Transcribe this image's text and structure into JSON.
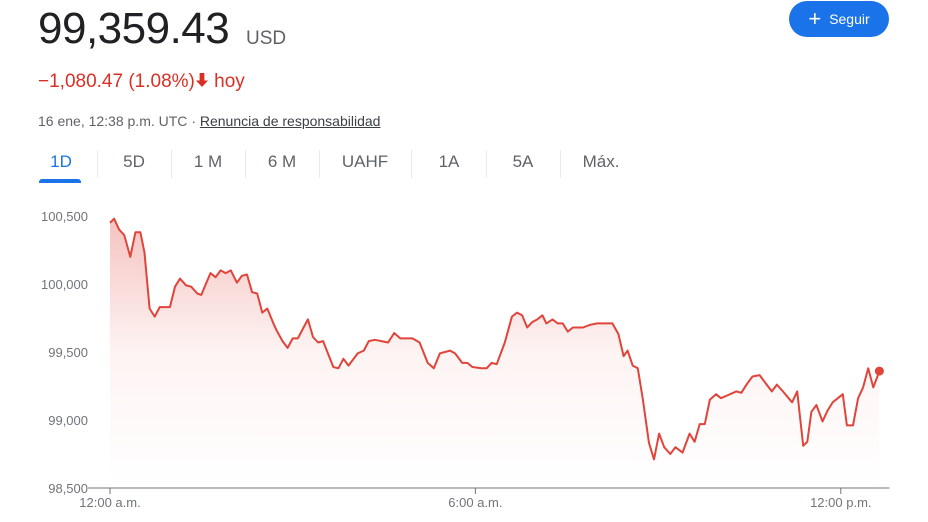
{
  "quote": {
    "price": "99,359.43",
    "currency": "USD",
    "change": "−1,080.47 (1.08%)",
    "change_arrow_icon": "arrow-down-icon",
    "change_period": "hoy",
    "timestamp": "16 ene, 12:38 p.m. UTC",
    "separator": "·",
    "disclaimer_link": "Renuncia de responsabilidad"
  },
  "follow_button": {
    "icon": "plus-icon",
    "label": "Seguir"
  },
  "tabs": [
    {
      "label": "1D",
      "active": true
    },
    {
      "label": "5D"
    },
    {
      "label": "1 M"
    },
    {
      "label": "6 M"
    },
    {
      "label": "UAHF"
    },
    {
      "label": "1A"
    },
    {
      "label": "5A"
    },
    {
      "label": "Máx."
    }
  ],
  "colors": {
    "line": "#e0443a",
    "accent": "#1a73e8",
    "negative": "#d93025"
  },
  "chart_data": {
    "type": "area",
    "title": "",
    "xlabel": "",
    "ylabel": "",
    "grid": false,
    "ylim": [
      98500,
      100500
    ],
    "xlim": [
      "00:00",
      "12:46"
    ],
    "y_ticks": [
      "100,500",
      "100,000",
      "99,500",
      "99,000",
      "98,500"
    ],
    "y_tick_values": [
      100500,
      100000,
      99500,
      99000,
      98500
    ],
    "x_ticks": [
      "12:00 a.m.",
      "6:00 a.m.",
      "12:00 p.m."
    ],
    "x_tick_values": [
      "00:00",
      "06:00",
      "12:00"
    ],
    "series": [
      {
        "x": [
          "00:00",
          "00:04",
          "00:09",
          "00:14",
          "00:20",
          "00:25",
          "00:30",
          "00:34",
          "00:39",
          "00:44",
          "00:49",
          "00:59",
          "01:04",
          "01:09",
          "01:15",
          "01:20",
          "01:26",
          "01:30",
          "01:35",
          "01:39",
          "01:44",
          "01:49",
          "01:54",
          "01:59",
          "02:05",
          "02:10",
          "02:15",
          "02:20",
          "02:25",
          "02:30",
          "02:35",
          "02:41",
          "02:44",
          "02:50",
          "02:55",
          "03:00",
          "03:05",
          "03:15",
          "03:20",
          "03:25",
          "03:30",
          "03:40",
          "03:45",
          "03:50",
          "03:55",
          "04:04",
          "04:10",
          "04:15",
          "04:21",
          "04:34",
          "04:40",
          "04:46",
          "04:58",
          "05:05",
          "05:13",
          "05:19",
          "05:25",
          "05:35",
          "05:40",
          "05:47",
          "05:52",
          "05:57",
          "06:06",
          "06:11",
          "06:16",
          "06:21",
          "06:29",
          "06:36",
          "06:41",
          "06:46",
          "06:51",
          "06:56",
          "07:01",
          "07:06",
          "07:10",
          "07:16",
          "07:21",
          "07:26",
          "07:31",
          "07:36",
          "07:46",
          "07:53",
          "08:00",
          "08:05",
          "08:15",
          "08:21",
          "08:26",
          "08:30",
          "08:35",
          "08:40",
          "08:45",
          "08:51",
          "08:56",
          "09:01",
          "09:06",
          "09:12",
          "09:17",
          "09:24",
          "09:31",
          "09:36",
          "09:41",
          "09:46",
          "09:51",
          "09:57",
          "10:02",
          "10:08",
          "10:14",
          "10:17",
          "10:22",
          "10:28",
          "10:33",
          "10:40",
          "10:47",
          "10:52",
          "10:57",
          "11:03",
          "11:12",
          "11:17",
          "11:23",
          "11:27",
          "11:31",
          "11:36",
          "11:42",
          "11:47",
          "11:52",
          "12:02",
          "12:06",
          "12:12",
          "12:17",
          "12:22",
          "12:27",
          "12:32",
          "12:38"
        ],
        "y": [
          100450,
          100480,
          100400,
          100360,
          100200,
          100380,
          100380,
          100230,
          99820,
          99760,
          99830,
          99830,
          99980,
          100040,
          99990,
          99980,
          99930,
          99920,
          100010,
          100080,
          100050,
          100100,
          100080,
          100100,
          100010,
          100060,
          100070,
          99940,
          99930,
          99790,
          99820,
          99710,
          99660,
          99580,
          99530,
          99600,
          99600,
          99740,
          99610,
          99570,
          99580,
          99390,
          99380,
          99450,
          99400,
          99490,
          99510,
          99580,
          99590,
          99570,
          99640,
          99600,
          99600,
          99570,
          99420,
          99380,
          99490,
          99510,
          99490,
          99420,
          99420,
          99390,
          99380,
          99380,
          99420,
          99410,
          99570,
          99760,
          99790,
          99770,
          99680,
          99720,
          99740,
          99770,
          99710,
          99740,
          99710,
          99710,
          99650,
          99680,
          99680,
          99700,
          99710,
          99710,
          99710,
          99630,
          99470,
          99510,
          99400,
          99380,
          99150,
          98830,
          98710,
          98900,
          98800,
          98750,
          98800,
          98760,
          98900,
          98840,
          98970,
          98970,
          99150,
          99190,
          99160,
          99180,
          99200,
          99210,
          99200,
          99270,
          99320,
          99330,
          99260,
          99210,
          99260,
          99210,
          99130,
          99210,
          98810,
          98840,
          99060,
          99110,
          98990,
          99070,
          99130,
          99190,
          98960,
          98960,
          99160,
          99240,
          99380,
          99240,
          99359.43
        ]
      }
    ]
  }
}
